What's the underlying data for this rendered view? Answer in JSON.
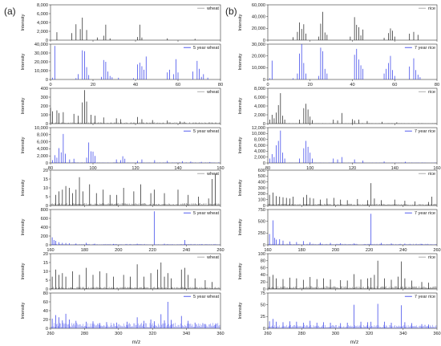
{
  "figure": {
    "panel_labels": [
      "(a)",
      "(b)"
    ],
    "x_axis_title": "m/z"
  },
  "colors": {
    "fresh": "#1a1a1a",
    "aged": "#2a35e8",
    "legend_line_fresh": "#999999",
    "legend_line_aged": "#2a35e8"
  },
  "chart_data": [
    {
      "id": "a1-top",
      "type": "bar",
      "column": "a",
      "group": 1,
      "legend": "wheat",
      "color_key": "fresh",
      "ylabel": "Intensity",
      "ylim": [
        0,
        8000
      ],
      "yticks": [
        "0",
        "2,000",
        "4,000",
        "6,000",
        "8,000"
      ],
      "xlim": [
        0,
        80
      ],
      "xticks": [
        "0",
        "20",
        "40",
        "60",
        "80"
      ],
      "show_xticks": false,
      "style": "sparse",
      "x": [
        3,
        10,
        12,
        14,
        15,
        17,
        22,
        25,
        26,
        28,
        41,
        42,
        43,
        55,
        68
      ],
      "y": [
        1800,
        1600,
        3600,
        2500,
        5100,
        2300,
        600,
        1000,
        3500,
        400,
        700,
        3500,
        600,
        400,
        300
      ]
    },
    {
      "id": "a1-bot",
      "type": "bar",
      "column": "a",
      "group": 1,
      "legend": "5 year wheat",
      "color_key": "aged",
      "ylabel": "Intensity",
      "ylim": [
        0,
        40000
      ],
      "yticks": [
        "0",
        "10,000",
        "20,000",
        "30,000",
        "40,000"
      ],
      "xlim": [
        0,
        80
      ],
      "xticks": [
        "0",
        "20",
        "40",
        "60",
        "80"
      ],
      "show_xticks": true,
      "style": "sparse",
      "x": [
        1,
        2,
        12,
        13,
        15,
        16,
        17,
        18,
        24,
        25,
        26,
        27,
        28,
        29,
        32,
        39,
        41,
        42,
        43,
        44,
        45,
        55,
        56,
        58,
        59,
        60,
        67,
        69,
        70,
        71,
        72,
        74
      ],
      "y": [
        2000,
        38000,
        1500,
        6000,
        33000,
        32000,
        14000,
        5000,
        3000,
        22000,
        20000,
        9000,
        4000,
        2500,
        2000,
        1500,
        17000,
        19000,
        15000,
        11000,
        26000,
        8000,
        11000,
        6000,
        23000,
        8000,
        9000,
        21000,
        12000,
        3000,
        6000,
        2000
      ]
    },
    {
      "id": "a2-top",
      "type": "bar",
      "column": "a",
      "group": 2,
      "legend": "wheat",
      "color_key": "fresh",
      "ylabel": "Intensity",
      "ylim": [
        0,
        400
      ],
      "yticks": [
        "0",
        "100",
        "200",
        "300",
        "400"
      ],
      "xlim": [
        80,
        160
      ],
      "xticks": [
        "80",
        "100",
        "120",
        "140",
        "160"
      ],
      "show_xticks": false,
      "style": "dense",
      "peak_ratio": 0.04,
      "seed": 11,
      "x": [
        80,
        81,
        83,
        84,
        86,
        91,
        93,
        95,
        96,
        97,
        99,
        101,
        105,
        111,
        113,
        121,
        123,
        128,
        135,
        141,
        143
      ],
      "y": [
        180,
        140,
        150,
        120,
        130,
        110,
        90,
        240,
        380,
        250,
        100,
        90,
        70,
        60,
        50,
        75,
        50,
        40,
        35,
        25,
        20
      ]
    },
    {
      "id": "a2-bot",
      "type": "bar",
      "column": "a",
      "group": 2,
      "legend": "5 year wheat",
      "color_key": "aged",
      "ylabel": "Intensity",
      "ylim": [
        0,
        10000
      ],
      "yticks": [
        "0",
        "2,000",
        "4,000",
        "6,000",
        "8,000",
        "10,000"
      ],
      "xlim": [
        80,
        160
      ],
      "xticks": [
        "80",
        "100",
        "120",
        "140",
        "160"
      ],
      "show_xticks": true,
      "style": "dense",
      "peak_ratio": 0.02,
      "seed": 12,
      "x": [
        81,
        82,
        83,
        84,
        85,
        86,
        87,
        89,
        91,
        97,
        98,
        99,
        100,
        101,
        111,
        113,
        114,
        115,
        121,
        123,
        129,
        135,
        142,
        146,
        151,
        155
      ],
      "y": [
        800,
        2200,
        1500,
        4200,
        3000,
        8200,
        2600,
        1000,
        1200,
        1500,
        5800,
        3300,
        3200,
        2000,
        1000,
        800,
        1900,
        1200,
        600,
        1000,
        800,
        600,
        500,
        400,
        300,
        250
      ]
    },
    {
      "id": "a3-top",
      "type": "bar",
      "column": "a",
      "group": 3,
      "legend": "wheat",
      "color_key": "fresh",
      "ylabel": "Intensity",
      "ylim": [
        0,
        20
      ],
      "yticks": [
        "0",
        "5",
        "10",
        "15",
        "20"
      ],
      "xlim": [
        160,
        260
      ],
      "xticks": [
        "160",
        "180",
        "200",
        "220",
        "240",
        "260"
      ],
      "show_xticks": false,
      "style": "dense",
      "peak_ratio": 0.07,
      "seed": 13,
      "x": [
        163,
        165,
        167,
        169,
        171,
        173,
        175,
        177,
        179,
        183,
        187,
        191,
        195,
        199,
        203,
        209,
        213,
        219,
        221,
        227,
        235,
        241,
        247,
        253,
        255,
        257
      ],
      "y": [
        6,
        8,
        9,
        11,
        10,
        7,
        9,
        16,
        8,
        12,
        7,
        9,
        6,
        6,
        10,
        8,
        12,
        7,
        9,
        7,
        9,
        6,
        5,
        4,
        15,
        18
      ]
    },
    {
      "id": "a3-bot",
      "type": "bar",
      "column": "a",
      "group": 3,
      "legend": "5 year wheat",
      "color_key": "aged",
      "ylabel": "Intensity",
      "ylim": [
        0,
        800
      ],
      "yticks": [
        "0",
        "200",
        "400",
        "600",
        "800"
      ],
      "xlim": [
        160,
        260
      ],
      "xticks": [
        "160",
        "180",
        "200",
        "220",
        "240",
        "260"
      ],
      "show_xticks": true,
      "style": "dense",
      "peak_ratio": 0.025,
      "seed": 14,
      "x": [
        161,
        162,
        163,
        165,
        167,
        169,
        171,
        175,
        181,
        186,
        197,
        211,
        221,
        227,
        239,
        249
      ],
      "y": [
        170,
        110,
        90,
        60,
        45,
        40,
        35,
        30,
        45,
        25,
        20,
        25,
        760,
        25,
        110,
        15
      ]
    },
    {
      "id": "a4-top",
      "type": "bar",
      "column": "a",
      "group": 4,
      "legend": "wheat",
      "color_key": "fresh",
      "ylabel": "Intensity",
      "ylim": [
        0,
        20
      ],
      "yticks": [
        "0",
        "5",
        "10",
        "15",
        "20"
      ],
      "xlim": [
        260,
        360
      ],
      "xticks": [
        "260",
        "280",
        "300",
        "320",
        "340",
        "360"
      ],
      "show_xticks": false,
      "style": "dense",
      "peak_ratio": 0.06,
      "seed": 15,
      "x": [
        261,
        263,
        265,
        267,
        269,
        273,
        277,
        281,
        285,
        289,
        293,
        297,
        303,
        307,
        311,
        315,
        319,
        323,
        325,
        327,
        329,
        331,
        337,
        339,
        341,
        345,
        351,
        355
      ],
      "y": [
        7,
        11,
        8,
        9,
        7,
        10,
        8,
        12,
        8,
        10,
        9,
        7,
        8,
        7,
        14,
        7,
        9,
        11,
        15,
        7,
        9,
        6,
        11,
        12,
        8,
        6,
        5,
        4
      ]
    },
    {
      "id": "a4-bot",
      "type": "bar",
      "column": "a",
      "group": 4,
      "legend": "5 year wheat",
      "color_key": "aged",
      "ylabel": "Intensity",
      "ylim": [
        0,
        80
      ],
      "yticks": [
        "0",
        "20",
        "40",
        "60",
        "80"
      ],
      "xlim": [
        260,
        360
      ],
      "xticks": [
        "260",
        "280",
        "300",
        "320",
        "340",
        "360"
      ],
      "show_xticks": true,
      "style": "dense",
      "peak_ratio": 0.16,
      "seed": 16,
      "x": [
        261,
        263,
        265,
        267,
        269,
        271,
        275,
        281,
        285,
        289,
        293,
        299,
        305,
        311,
        315,
        319,
        321,
        325,
        327,
        329,
        331,
        337,
        341,
        345,
        351,
        357
      ],
      "y": [
        22,
        30,
        25,
        18,
        33,
        20,
        17,
        15,
        16,
        12,
        14,
        13,
        15,
        25,
        17,
        20,
        16,
        32,
        18,
        60,
        19,
        28,
        17,
        13,
        10,
        8
      ]
    },
    {
      "id": "b1-top",
      "type": "bar",
      "column": "b",
      "group": 1,
      "legend": "rice",
      "color_key": "fresh",
      "ylabel": "Intensity",
      "ylim": [
        0,
        60000
      ],
      "yticks": [
        "0",
        "20,000",
        "40,000",
        "60,000"
      ],
      "xlim": [
        0,
        80
      ],
      "xticks": [
        "0",
        "20",
        "40",
        "60",
        "80"
      ],
      "show_xticks": false,
      "style": "sparse",
      "x": [
        12,
        14,
        15,
        16,
        17,
        18,
        24,
        25,
        26,
        27,
        28,
        39,
        41,
        42,
        43,
        44,
        45,
        55,
        57,
        58,
        59,
        60,
        67,
        69,
        71
      ],
      "y": [
        5000,
        14000,
        30000,
        19000,
        27000,
        11000,
        6000,
        28000,
        48000,
        13000,
        9000,
        6000,
        39000,
        26000,
        22000,
        8000,
        18000,
        4000,
        12000,
        20000,
        16000,
        6000,
        11000,
        14000,
        9000
      ]
    },
    {
      "id": "b1-bot",
      "type": "bar",
      "column": "b",
      "group": 1,
      "legend": "7 year rice",
      "color_key": "aged",
      "ylabel": "Intensity",
      "ylim": [
        0,
        30000
      ],
      "yticks": [
        "0",
        "10,000",
        "20,000",
        "30,000"
      ],
      "xlim": [
        0,
        80
      ],
      "xticks": [
        "0",
        "20",
        "40",
        "60",
        "80"
      ],
      "show_xticks": true,
      "style": "sparse",
      "x": [
        1,
        2,
        12,
        14,
        15,
        16,
        17,
        18,
        24,
        25,
        26,
        27,
        28,
        41,
        42,
        43,
        44,
        45,
        55,
        56,
        57,
        58,
        59,
        60,
        67,
        69,
        70,
        71,
        72
      ],
      "y": [
        1000,
        16000,
        1000,
        5000,
        22000,
        30000,
        14000,
        5000,
        3000,
        27000,
        24000,
        9000,
        5000,
        21000,
        26000,
        17000,
        12000,
        9000,
        5000,
        9000,
        14000,
        20000,
        8000,
        3000,
        11000,
        18000,
        8000,
        4000,
        2000
      ]
    },
    {
      "id": "b2-top",
      "type": "bar",
      "column": "b",
      "group": 2,
      "legend": "rice",
      "color_key": "fresh",
      "ylabel": "Intensity",
      "ylim": [
        0,
        8000
      ],
      "yticks": [
        "0",
        "2,000",
        "4,000",
        "6,000",
        "8,000"
      ],
      "xlim": [
        80,
        160
      ],
      "xticks": [
        "80",
        "100",
        "120",
        "140",
        "160"
      ],
      "show_xticks": false,
      "style": "dense",
      "peak_ratio": 0.015,
      "seed": 21,
      "x": [
        81,
        82,
        83,
        84,
        85,
        86,
        87,
        88,
        95,
        97,
        98,
        99,
        100,
        101,
        111,
        113,
        115,
        120,
        121,
        123,
        127,
        134,
        141
      ],
      "y": [
        900,
        2000,
        1200,
        2500,
        4200,
        6900,
        1800,
        900,
        900,
        3500,
        4500,
        3200,
        1600,
        800,
        900,
        700,
        2400,
        1000,
        700,
        900,
        600,
        400,
        300
      ]
    },
    {
      "id": "b2-bot",
      "type": "bar",
      "column": "b",
      "group": 2,
      "legend": "7 year rice",
      "color_key": "aged",
      "ylabel": "Intensity",
      "ylim": [
        0,
        12000
      ],
      "yticks": [
        "0",
        "2,000",
        "4,000",
        "6,000",
        "8,000",
        "10,000",
        "12,000"
      ],
      "xlim": [
        80,
        160
      ],
      "xticks": [
        "80",
        "100",
        "120",
        "140",
        "160"
      ],
      "show_xticks": true,
      "style": "dense",
      "peak_ratio": 0.015,
      "seed": 22,
      "x": [
        81,
        82,
        83,
        84,
        85,
        86,
        87,
        88,
        95,
        97,
        98,
        99,
        100,
        101,
        111,
        113,
        115,
        121,
        125,
        135,
        145
      ],
      "y": [
        1500,
        3000,
        2000,
        6000,
        7500,
        11000,
        3500,
        1500,
        1500,
        5000,
        7500,
        5500,
        3500,
        1500,
        1500,
        1200,
        2000,
        1200,
        800,
        500,
        400
      ]
    },
    {
      "id": "b3-top",
      "type": "bar",
      "column": "b",
      "group": 3,
      "legend": "rice",
      "color_key": "fresh",
      "ylabel": "Intensity",
      "ylim": [
        0,
        600
      ],
      "yticks": [
        "0",
        "100",
        "200",
        "300",
        "400",
        "500",
        "600"
      ],
      "xlim": [
        160,
        260
      ],
      "xticks": [
        "160",
        "180",
        "200",
        "220",
        "240",
        "260"
      ],
      "show_xticks": false,
      "style": "dense",
      "peak_ratio": 0.05,
      "seed": 23,
      "x": [
        161,
        163,
        165,
        167,
        169,
        171,
        173,
        175,
        181,
        183,
        185,
        187,
        191,
        195,
        199,
        203,
        207,
        213,
        219,
        221,
        223,
        227,
        235,
        241,
        247,
        255,
        257
      ],
      "y": [
        180,
        220,
        160,
        150,
        140,
        130,
        120,
        150,
        140,
        180,
        130,
        120,
        100,
        120,
        130,
        100,
        90,
        110,
        90,
        380,
        120,
        90,
        100,
        80,
        70,
        60,
        150
      ]
    },
    {
      "id": "b3-bot",
      "type": "bar",
      "column": "b",
      "group": 3,
      "legend": "7 year rice",
      "color_key": "aged",
      "ylabel": "Intensity",
      "ylim": [
        0,
        750
      ],
      "yticks": [
        "0",
        "250",
        "500",
        "750"
      ],
      "xlim": [
        160,
        260
      ],
      "xticks": [
        "160",
        "180",
        "200",
        "220",
        "240",
        "260"
      ],
      "show_xticks": true,
      "style": "dense",
      "peak_ratio": 0.03,
      "seed": 24,
      "x": [
        161,
        163,
        164,
        165,
        167,
        169,
        173,
        177,
        181,
        185,
        191,
        197,
        203,
        211,
        221,
        227,
        233,
        241,
        251
      ],
      "y": [
        230,
        520,
        150,
        110,
        120,
        90,
        70,
        60,
        80,
        55,
        45,
        40,
        35,
        30,
        660,
        40,
        30,
        25,
        20
      ]
    },
    {
      "id": "b4-top",
      "type": "bar",
      "column": "b",
      "group": 4,
      "legend": "rice",
      "color_key": "fresh",
      "ylabel": "Intensity",
      "ylim": [
        0,
        100
      ],
      "yticks": [
        "0",
        "20",
        "40",
        "60",
        "80",
        "100"
      ],
      "xlim": [
        260,
        360
      ],
      "xticks": [
        "260",
        "280",
        "300",
        "320",
        "340",
        "360"
      ],
      "show_xticks": false,
      "style": "dense",
      "peak_ratio": 0.08,
      "seed": 25,
      "x": [
        261,
        263,
        265,
        269,
        273,
        277,
        281,
        285,
        289,
        293,
        297,
        303,
        307,
        311,
        315,
        319,
        321,
        323,
        325,
        329,
        333,
        337,
        339,
        341,
        345,
        351,
        355
      ],
      "y": [
        35,
        40,
        30,
        28,
        32,
        30,
        26,
        34,
        28,
        30,
        27,
        25,
        24,
        42,
        27,
        30,
        32,
        40,
        80,
        30,
        26,
        35,
        78,
        30,
        24,
        20,
        18
      ]
    },
    {
      "id": "b4-bot",
      "type": "bar",
      "column": "b",
      "group": 4,
      "legend": "7 year rice",
      "color_key": "aged",
      "ylabel": "Intensity",
      "ylim": [
        0,
        75
      ],
      "yticks": [
        "0",
        "25",
        "50",
        "75"
      ],
      "xlim": [
        260,
        360
      ],
      "xticks": [
        "260",
        "280",
        "300",
        "320",
        "340",
        "360"
      ],
      "show_xticks": true,
      "style": "dense",
      "peak_ratio": 0.1,
      "seed": 26,
      "x": [
        261,
        263,
        265,
        269,
        273,
        277,
        281,
        285,
        289,
        293,
        297,
        303,
        307,
        311,
        315,
        319,
        321,
        325,
        329,
        333,
        339,
        341,
        345,
        351,
        355
      ],
      "y": [
        15,
        20,
        14,
        13,
        15,
        14,
        12,
        16,
        12,
        13,
        12,
        11,
        12,
        50,
        14,
        13,
        14,
        52,
        14,
        12,
        49,
        13,
        11,
        9,
        8
      ]
    }
  ]
}
